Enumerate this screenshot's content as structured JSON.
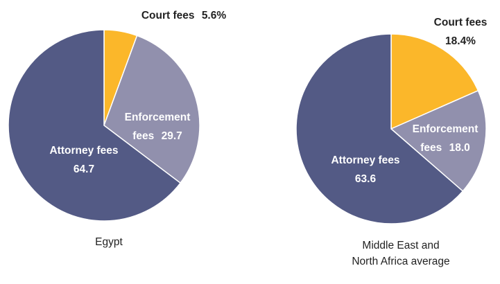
{
  "chart_data": [
    {
      "type": "pie",
      "title": "Egypt",
      "categories": [
        "Court fees",
        "Enforcement fees",
        "Attorney fees"
      ],
      "values": [
        5.6,
        29.7,
        64.7
      ],
      "value_labels": [
        "5.6%",
        "29.7",
        "64.7"
      ],
      "colors": [
        "#fbb72a",
        "#9190ad",
        "#535a85"
      ]
    },
    {
      "type": "pie",
      "title": "Middle East and North Africa average",
      "categories": [
        "Court fees",
        "Enforcement fees",
        "Attorney fees"
      ],
      "values": [
        18.4,
        18.0,
        63.6
      ],
      "value_labels": [
        "18.4%",
        "18.0",
        "63.6"
      ],
      "colors": [
        "#fbb72a",
        "#9190ad",
        "#535a85"
      ]
    }
  ]
}
